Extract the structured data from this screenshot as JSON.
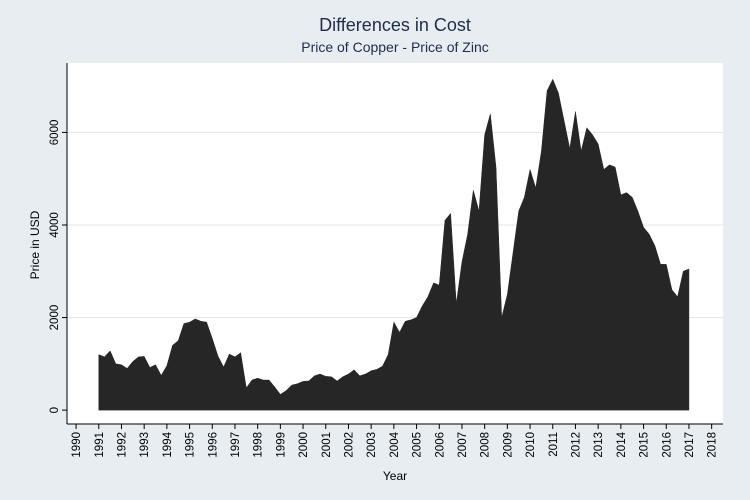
{
  "chart_data": {
    "type": "area",
    "title": "Differences in Cost",
    "subtitle": "Price of Copper - Price of Zinc",
    "xlabel": "Year",
    "ylabel": "Price in USD",
    "xlim": [
      1989.6,
      2018.5
    ],
    "ylim": [
      -300,
      7500
    ],
    "x_ticks": [
      1990,
      1991,
      1992,
      1993,
      1994,
      1995,
      1996,
      1997,
      1998,
      1999,
      2000,
      2001,
      2002,
      2003,
      2004,
      2005,
      2006,
      2007,
      2008,
      2009,
      2010,
      2011,
      2012,
      2013,
      2014,
      2015,
      2016,
      2017,
      2018
    ],
    "x_tick_labels": [
      "1990",
      "1991",
      "1992",
      "1993",
      "1994",
      "1995",
      "1996",
      "1997",
      "1998",
      "1999",
      "2000",
      "2001",
      "2002",
      "2003",
      "2004",
      "2005",
      "2006",
      "2007",
      "2008",
      "2009",
      "2010",
      "2011",
      "2012",
      "2013",
      "2014",
      "2015",
      "2016",
      "2017",
      "2018"
    ],
    "y_ticks": [
      0,
      2000,
      4000,
      6000
    ],
    "y_tick_labels": [
      "0",
      "2000",
      "4000",
      "6000"
    ],
    "grid": true,
    "fill_color": "#262626",
    "series": [
      {
        "name": "Price of Copper - Price of Zinc",
        "x": [
          1991.0,
          1991.25,
          1991.5,
          1991.75,
          1992.0,
          1992.25,
          1992.5,
          1992.75,
          1993.0,
          1993.25,
          1993.5,
          1993.75,
          1994.0,
          1994.25,
          1994.5,
          1994.75,
          1995.0,
          1995.25,
          1995.5,
          1995.75,
          1996.0,
          1996.25,
          1996.5,
          1996.75,
          1997.0,
          1997.25,
          1997.5,
          1997.75,
          1998.0,
          1998.25,
          1998.5,
          1998.75,
          1999.0,
          1999.25,
          1999.5,
          1999.75,
          2000.0,
          2000.25,
          2000.5,
          2000.75,
          2001.0,
          2001.25,
          2001.5,
          2001.75,
          2002.0,
          2002.25,
          2002.5,
          2002.75,
          2003.0,
          2003.25,
          2003.5,
          2003.75,
          2004.0,
          2004.25,
          2004.5,
          2004.75,
          2005.0,
          2005.25,
          2005.5,
          2005.75,
          2006.0,
          2006.25,
          2006.5,
          2006.75,
          2007.0,
          2007.25,
          2007.5,
          2007.75,
          2008.0,
          2008.25,
          2008.5,
          2008.75,
          2009.0,
          2009.25,
          2009.5,
          2009.75,
          2010.0,
          2010.25,
          2010.5,
          2010.75,
          2011.0,
          2011.25,
          2011.5,
          2011.75,
          2012.0,
          2012.25,
          2012.5,
          2012.75,
          2013.0,
          2013.25,
          2013.5,
          2013.75,
          2014.0,
          2014.25,
          2014.5,
          2014.75,
          2015.0,
          2015.25,
          2015.5,
          2015.75,
          2016.0,
          2016.25,
          2016.5,
          2016.75,
          2017.0
        ],
        "values": [
          1200,
          1150,
          1280,
          1000,
          980,
          900,
          1050,
          1150,
          1160,
          920,
          980,
          750,
          960,
          1400,
          1500,
          1870,
          1900,
          1970,
          1920,
          1900,
          1550,
          1170,
          930,
          1210,
          1150,
          1240,
          480,
          650,
          690,
          650,
          650,
          500,
          340,
          420,
          540,
          570,
          620,
          630,
          740,
          780,
          730,
          720,
          630,
          720,
          780,
          870,
          740,
          780,
          850,
          880,
          950,
          1200,
          1900,
          1680,
          1920,
          1950,
          2000,
          2250,
          2450,
          2750,
          2700,
          4100,
          4250,
          2300,
          3200,
          3800,
          4750,
          4300,
          5950,
          6400,
          5250,
          2000,
          2500,
          3400,
          4300,
          4600,
          5200,
          4800,
          5600,
          6900,
          7150,
          6850,
          6250,
          5650,
          6450,
          5600,
          6100,
          5950,
          5750,
          5200,
          5300,
          5250,
          4650,
          4700,
          4600,
          4300,
          3950,
          3800,
          3550,
          3150,
          3150,
          2600,
          2450,
          3000,
          3050
        ]
      }
    ]
  }
}
